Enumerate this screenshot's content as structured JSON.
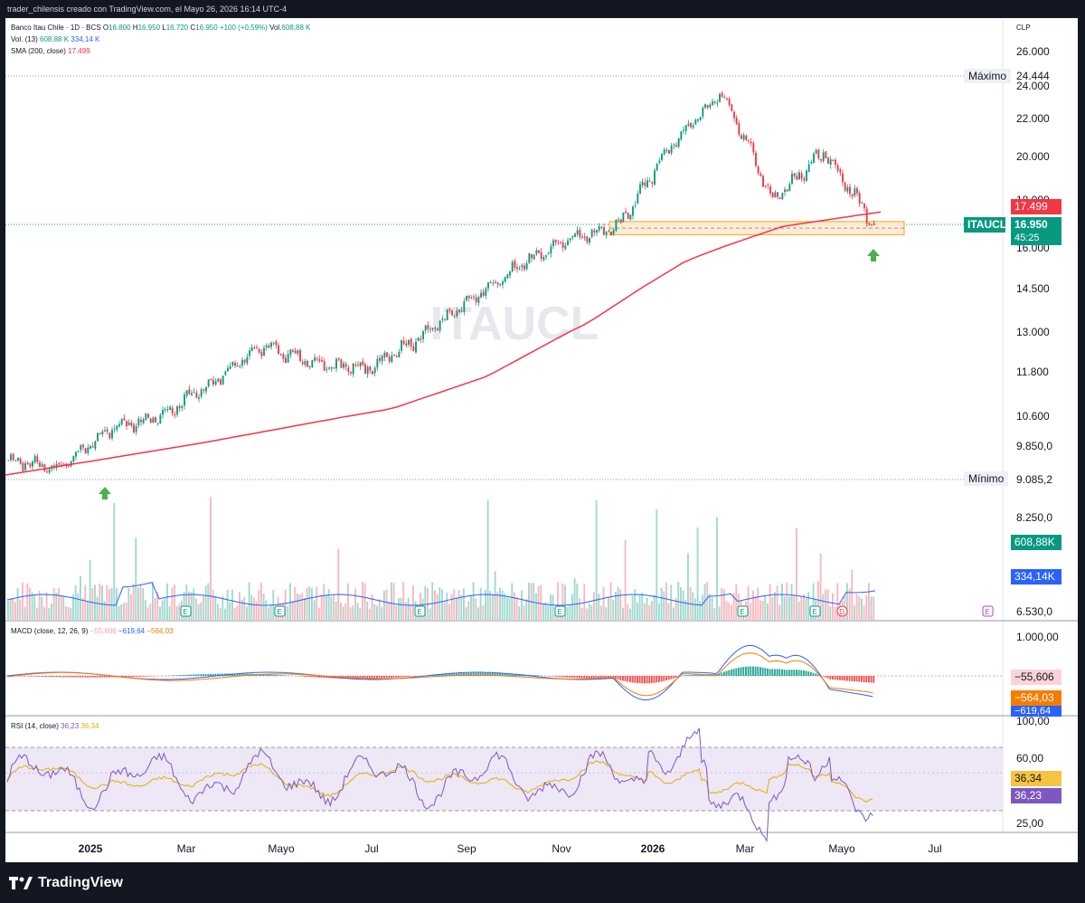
{
  "header": {
    "credit": "trader_chilensis creado con TradingView.com, el Mayo 26, 2026 16:14 UTC-4"
  },
  "footer": {
    "brand": "TradingView"
  },
  "legend": {
    "symbol_line": "Banco Itau Chile · 1D · BCS",
    "open_label": "O",
    "open": "16.800",
    "high_label": "H",
    "high": "16.950",
    "low_label": "L",
    "low": "16.720",
    "close_label": "C",
    "close": "16.950",
    "change": "+100 (+0,59%)",
    "vol_label": "Vol.",
    "vol": "608,88 K",
    "vol13_label": "Vol. (13)",
    "vol13_a": "608,88 K",
    "vol13_b": "334,14 K",
    "sma_label": "SMA (200, close)",
    "sma": "17.499",
    "macd_label": "MACD (close, 12, 26, 9)",
    "macd_hist": "−55,606",
    "macd_line": "−619,64",
    "macd_signal": "−564,03",
    "rsi_label": "RSI (14, close)",
    "rsi": "36,23",
    "rsi_ma": "36,34"
  },
  "watermark": "ITAUCL",
  "currency": "CLP",
  "tags": {
    "max_label": "Máximo",
    "max_value": "24.444",
    "min_label": "Mínimo",
    "min_value": "9.085,2",
    "sma_value": "17.499",
    "symbol": "ITAUCL",
    "price": "16.950",
    "countdown": "45:25",
    "vol_value": "608,88K",
    "vol_ma_value": "334,14K",
    "macd_hist": "−55,606",
    "macd_signal": "−564,03",
    "macd_line": "−619,64",
    "rsi_ma": "36,34",
    "rsi": "36,23"
  },
  "chart_data": {
    "type": "line",
    "title": "Banco Itau Chile · 1D · BCS",
    "price_axis": [
      "26.000",
      "24.000",
      "22.000",
      "20.000",
      "18.000",
      "16.000",
      "14.500",
      "13.000",
      "11.800",
      "10.600",
      "9.850,0",
      "8.250,0",
      "6.530,0"
    ],
    "macd_axis": [
      "1.000,00"
    ],
    "rsi_axis": [
      "100,00",
      "60,00",
      "25,00"
    ],
    "time_axis": [
      "2025",
      "Mar",
      "Mayo",
      "Jul",
      "Sep",
      "Nov",
      "2026",
      "Mar",
      "Mayo",
      "Jul"
    ],
    "series": [
      {
        "name": "Banco Itau Chile",
        "x": [
          "Dic 2024",
          "Ene 2025",
          "Feb 2025",
          "Mar 2025",
          "Abr 2025",
          "May 2025",
          "Jun 2025",
          "Jul 2025",
          "Ago 2025",
          "Sep 2025",
          "Oct 2025",
          "Nov 2025",
          "Dic 2025",
          "Ene 2026",
          "Feb 2026",
          "Mar 2026",
          "Abr 2026",
          "May 2026"
        ],
        "values": [
          9500,
          9300,
          10300,
          10600,
          11500,
          12600,
          12100,
          11900,
          12700,
          14000,
          15300,
          16400,
          16900,
          20500,
          23500,
          18000,
          20200,
          16950
        ]
      },
      {
        "name": "SMA (200, close)",
        "x": [
          "Dic 2024",
          "Feb 2025",
          "Abr 2025",
          "Jun 2025",
          "Ago 2025",
          "Oct 2025",
          "Dic 2025",
          "Feb 2026",
          "Abr 2026",
          "May 2026"
        ],
        "values": [
          9100,
          9500,
          9900,
          10350,
          10800,
          11700,
          13300,
          15500,
          16900,
          17499
        ]
      }
    ],
    "levels": {
      "max": 24444,
      "min": 9085.2,
      "last": 16950,
      "sma": 17499
    },
    "support_zone": [
      16700,
      17100
    ],
    "volume_last": 608880,
    "volume_ma": 334140,
    "macd": {
      "hist": -55.606,
      "macd": -619.64,
      "signal": -564.03
    },
    "rsi": {
      "value": 36.23,
      "ma": 36.34,
      "bands": [
        30,
        70
      ]
    },
    "events": [
      "E",
      "E",
      "E",
      "E",
      "E",
      "E",
      "D",
      "E",
      "E"
    ],
    "arrows": 2
  },
  "colors": {
    "up": "#089981",
    "down": "#f23645",
    "sma": "#f23645",
    "volma": "#2962ff",
    "macd": "#2962ff",
    "signal": "#f57c00",
    "rsi": "#7e57c2",
    "rsi_ma": "#e2b000",
    "arrow": "#4caf50",
    "zone": "#f5a623"
  }
}
